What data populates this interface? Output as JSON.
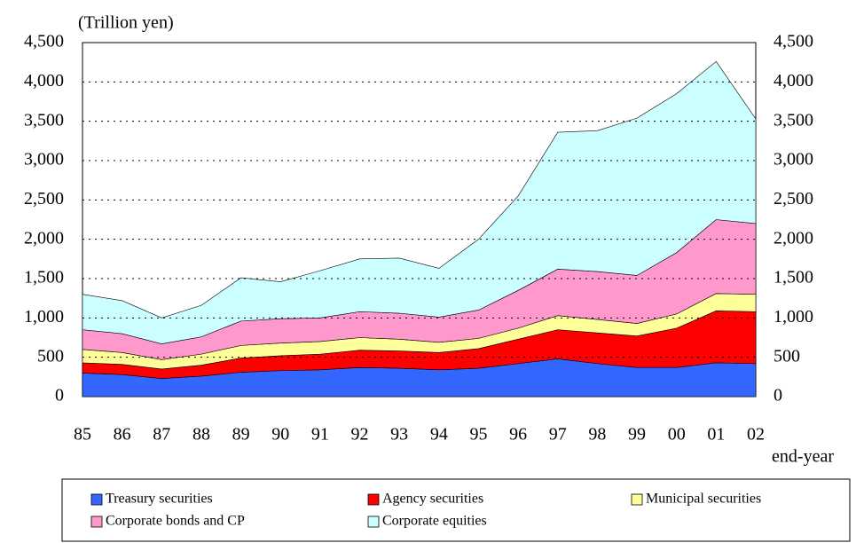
{
  "chart_data": {
    "type": "stacked_area",
    "y_unit_label": "(Trillion yen)",
    "x_label": "end-year",
    "categories": [
      "85",
      "86",
      "87",
      "88",
      "89",
      "90",
      "91",
      "92",
      "93",
      "94",
      "95",
      "96",
      "97",
      "98",
      "99",
      "00",
      "01",
      "02"
    ],
    "series": [
      {
        "name": "Treasury securities",
        "color": "#3366ff",
        "values": [
          300,
          280,
          230,
          260,
          310,
          330,
          340,
          370,
          360,
          340,
          360,
          420,
          480,
          420,
          370,
          370,
          430,
          420
        ]
      },
      {
        "name": "Agency securities",
        "color": "#ff0000",
        "values": [
          130,
          130,
          120,
          140,
          180,
          190,
          200,
          220,
          220,
          220,
          250,
          310,
          370,
          390,
          400,
          500,
          660,
          660
        ]
      },
      {
        "name": "Municipal securities",
        "color": "#ffff99",
        "values": [
          170,
          150,
          120,
          140,
          160,
          160,
          160,
          160,
          150,
          130,
          130,
          140,
          180,
          170,
          160,
          180,
          220,
          220
        ]
      },
      {
        "name": "Corporate bonds and CP",
        "color": "#ff99cc",
        "values": [
          250,
          240,
          200,
          220,
          310,
          310,
          300,
          330,
          330,
          320,
          360,
          480,
          590,
          610,
          610,
          780,
          940,
          900
        ]
      },
      {
        "name": "Corporate equities",
        "color": "#ccffff",
        "values": [
          450,
          420,
          330,
          400,
          550,
          470,
          600,
          670,
          700,
          620,
          900,
          1200,
          1740,
          1790,
          2000,
          2020,
          2010,
          1330
        ]
      }
    ],
    "ylim": [
      0,
      4500
    ],
    "yticks": [
      0,
      500,
      {
        "value": 1000,
        "label": "1,000"
      },
      {
        "value": 1500,
        "label": "1,500"
      },
      {
        "value": 2000,
        "label": "2,000"
      },
      {
        "value": 2500,
        "label": "2,500"
      },
      {
        "value": 3000,
        "label": "3,000"
      },
      {
        "value": 3500,
        "label": "3,500"
      },
      {
        "value": 4000,
        "label": "4,000"
      },
      {
        "value": 4500,
        "label": "4,500"
      }
    ],
    "grid": true
  }
}
